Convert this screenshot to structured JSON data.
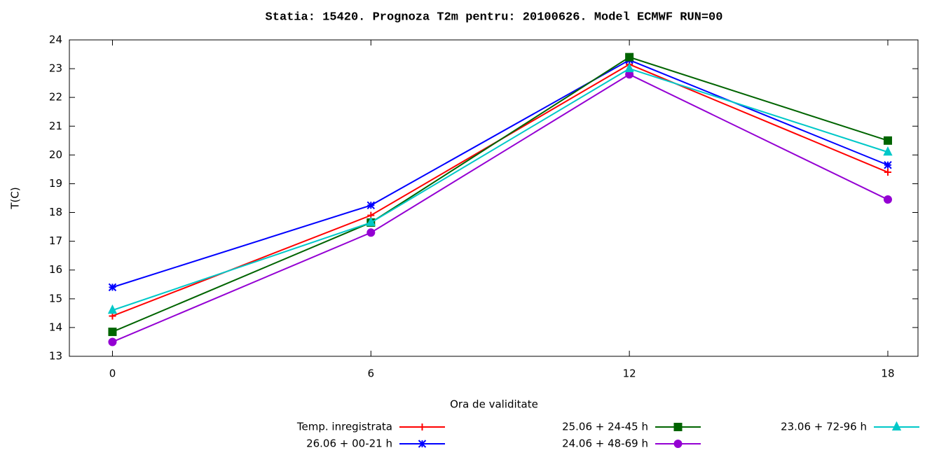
{
  "chart_data": {
    "type": "line",
    "title": "Statia: 15420. Prognoza T2m  pentru:  20100626.  Model ECMWF RUN=00",
    "x_label": "Ora de validitate",
    "y_label": "T(C)",
    "x": [
      0,
      6,
      12,
      18
    ],
    "xlim": [
      -1,
      18.7
    ],
    "xticks": [
      0,
      6,
      12,
      18
    ],
    "ylim": [
      13,
      24
    ],
    "yticks": [
      13,
      14,
      15,
      16,
      17,
      18,
      19,
      20,
      21,
      22,
      23,
      24
    ],
    "grid": false,
    "series": [
      {
        "name": "Temp. inregistrata",
        "color": "#ff0000",
        "marker": "plus",
        "values": [
          14.4,
          17.9,
          23.15,
          19.4
        ]
      },
      {
        "name": "26.06 + 00-21 h",
        "color": "#0000ff",
        "marker": "star",
        "values": [
          15.4,
          18.25,
          23.3,
          19.65
        ]
      },
      {
        "name": "25.06 + 24-45 h",
        "color": "#006400",
        "marker": "square",
        "values": [
          13.85,
          17.65,
          23.4,
          20.5
        ]
      },
      {
        "name": "24.06 + 48-69 h",
        "color": "#9400d3",
        "marker": "circle",
        "values": [
          13.5,
          17.3,
          22.8,
          18.45
        ]
      },
      {
        "name": "23.06 + 72-96 h",
        "color": "#00c8c8",
        "marker": "triangle",
        "values": [
          14.6,
          17.65,
          23.0,
          20.1
        ]
      }
    ]
  }
}
